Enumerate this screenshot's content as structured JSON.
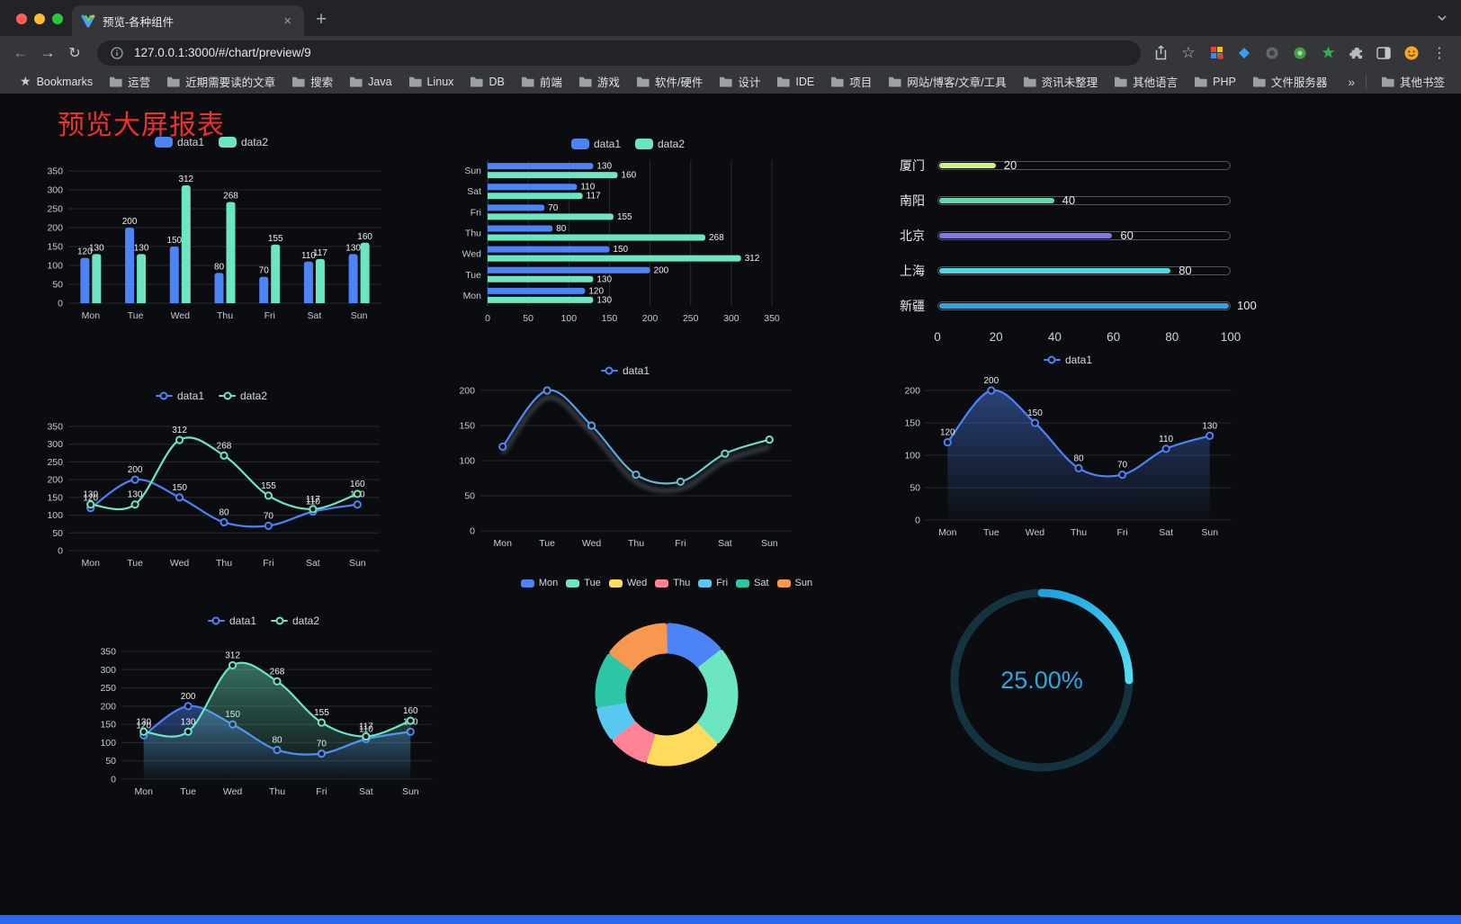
{
  "browser": {
    "traffic_lights": [
      "#ff5f57",
      "#febc2e",
      "#28c840"
    ],
    "tab": {
      "title": "预览-各种组件",
      "close_glyph": "×",
      "new_tab_glyph": "+"
    },
    "address": {
      "url": "127.0.0.1:3000/#/chart/preview/9"
    },
    "bookmarks": {
      "first": "Bookmarks",
      "folders": [
        "运营",
        "近期需要读的文章",
        "搜索",
        "Java",
        "Linux",
        "DB",
        "前端",
        "游戏",
        "软件/硬件",
        "设计",
        "IDE",
        "项目",
        "网站/博客/文章/工具",
        "资讯未整理",
        "其他语言",
        "PHP",
        "文件服务器"
      ],
      "overflow_glyph": "»",
      "other": "其他书签"
    }
  },
  "glyphs": {
    "back": "←",
    "forward": "→",
    "reload": "↻",
    "star": "☆",
    "kebab": "⋮",
    "bookmarks_star": "★"
  },
  "page": {
    "title": "预览大屏报表",
    "accent_bar_color": "#2a66f0"
  },
  "chart_data": [
    {
      "id": "bar-vertical",
      "type": "bar",
      "categories": [
        "Mon",
        "Tue",
        "Wed",
        "Thu",
        "Fri",
        "Sat",
        "Sun"
      ],
      "series": [
        {
          "name": "data1",
          "color": "#4C83F7",
          "values": [
            120,
            200,
            150,
            80,
            70,
            110,
            130
          ]
        },
        {
          "name": "data2",
          "color": "#6BE6C1",
          "values": [
            130,
            130,
            312,
            268,
            155,
            117,
            160
          ]
        }
      ],
      "ylim": [
        0,
        350
      ],
      "ystep": 50,
      "legend_position": "top",
      "grid": true
    },
    {
      "id": "bar-horizontal",
      "type": "bar",
      "orientation": "horizontal",
      "categories": [
        "Mon",
        "Tue",
        "Wed",
        "Thu",
        "Fri",
        "Sat",
        "Sun"
      ],
      "series": [
        {
          "name": "data1",
          "color": "#4C83F7",
          "values": [
            120,
            200,
            150,
            80,
            70,
            110,
            130
          ]
        },
        {
          "name": "data2",
          "color": "#6BE6C1",
          "values": [
            130,
            130,
            312,
            268,
            155,
            117,
            160
          ]
        }
      ],
      "xlim": [
        0,
        350
      ],
      "xstep": 50,
      "legend_position": "top",
      "grid": true
    },
    {
      "id": "progress-list",
      "type": "bar",
      "orientation": "horizontal",
      "categories": [
        "厦门",
        "南阳",
        "北京",
        "上海",
        "新疆"
      ],
      "values": [
        20,
        40,
        60,
        80,
        100
      ],
      "colors": [
        "#cdf381",
        "#62d9ab",
        "#8378ea",
        "#4fd6e3",
        "#37a2da"
      ],
      "xlim": [
        0,
        100
      ],
      "xticks": [
        0,
        20,
        40,
        60,
        80,
        100
      ]
    },
    {
      "id": "line-two-series",
      "type": "line",
      "categories": [
        "Mon",
        "Tue",
        "Wed",
        "Thu",
        "Fri",
        "Sat",
        "Sun"
      ],
      "series": [
        {
          "name": "data1",
          "color": "#4C83F7",
          "values": [
            120,
            200,
            150,
            80,
            70,
            110,
            130
          ]
        },
        {
          "name": "data2",
          "color": "#6BE6C1",
          "values": [
            130,
            130,
            312,
            268,
            155,
            117,
            160
          ]
        }
      ],
      "ylim": [
        0,
        350
      ],
      "ystep": 50,
      "legend_position": "top",
      "smooth": true
    },
    {
      "id": "line-gradient",
      "type": "line",
      "categories": [
        "Mon",
        "Tue",
        "Wed",
        "Thu",
        "Fri",
        "Sat",
        "Sun"
      ],
      "series": [
        {
          "name": "data1",
          "values": [
            120,
            200,
            150,
            80,
            70,
            110,
            130
          ]
        }
      ],
      "gradient": [
        "#4C83F7",
        "#6BE6C1"
      ],
      "ylim": [
        0,
        200
      ],
      "ystep": 50,
      "legend_position": "top",
      "smooth": true
    },
    {
      "id": "area-single",
      "type": "area",
      "categories": [
        "Mon",
        "Tue",
        "Wed",
        "Thu",
        "Fri",
        "Sat",
        "Sun"
      ],
      "series": [
        {
          "name": "data1",
          "color": "#4C83F7",
          "values": [
            120,
            200,
            150,
            80,
            70,
            110,
            130
          ]
        }
      ],
      "ylim": [
        0,
        200
      ],
      "ystep": 50,
      "legend_position": "top",
      "smooth": true
    },
    {
      "id": "area-two-series",
      "type": "area",
      "categories": [
        "Mon",
        "Tue",
        "Wed",
        "Thu",
        "Fri",
        "Sat",
        "Sun"
      ],
      "series": [
        {
          "name": "data1",
          "color": "#4C83F7",
          "values": [
            120,
            200,
            150,
            80,
            70,
            110,
            130
          ]
        },
        {
          "name": "data2",
          "color": "#6BE6C1",
          "values": [
            130,
            130,
            312,
            268,
            155,
            117,
            160
          ]
        }
      ],
      "ylim": [
        0,
        350
      ],
      "ystep": 50,
      "legend_position": "top",
      "smooth": true
    },
    {
      "id": "donut",
      "type": "pie",
      "categories": [
        "Mon",
        "Tue",
        "Wed",
        "Thu",
        "Fri",
        "Sat",
        "Sun"
      ],
      "values": [
        120,
        200,
        150,
        80,
        70,
        110,
        130
      ],
      "colors": [
        "#4C83F7",
        "#6BE6C1",
        "#FEDB5C",
        "#FF8296",
        "#58C8F2",
        "#2EC7A6",
        "#F9974F"
      ],
      "legend_position": "top"
    },
    {
      "id": "gauge",
      "type": "gauge",
      "value": 25,
      "label": "25.00%",
      "color": "#28B4E8",
      "track_color": "#143340",
      "range": [
        0,
        100
      ]
    }
  ]
}
